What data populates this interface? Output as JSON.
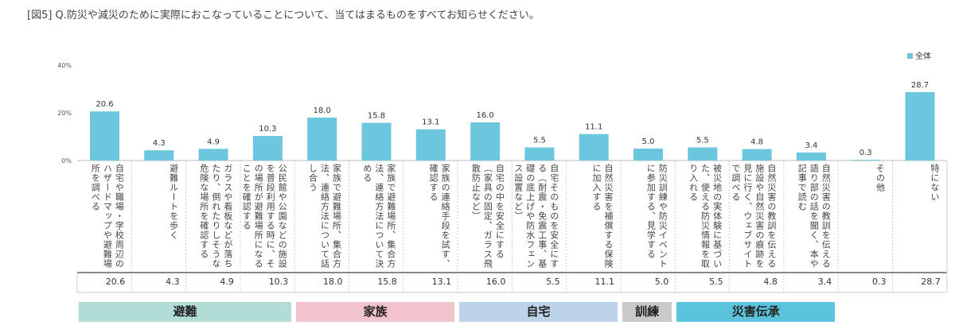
{
  "title": "[図5] Q.防災や減災のために実際におこなっていることについて、当てはまるものをすべてお知らせください。",
  "chart_data": {
    "type": "bar",
    "ylim": [
      0,
      40
    ],
    "yticks": [
      "0%",
      "20%",
      "40%"
    ],
    "legend": {
      "position": "top-right",
      "entries": [
        "全体"
      ]
    },
    "bar_color": "#6cc6de",
    "categories": [
      "自宅や職場・学校周辺のハザードマップや避難場所を調べる",
      "避難ルートを歩く",
      "ガラスや看板などが落ちたり、倒れたりしそうな危険な場所を確認する",
      "公民館や公園などの施設を普段利用する時に、その場所が避難場所になることを確認する",
      "家族で避難場所、集合方法、連絡方法について話し合う",
      "家族で避難場所、集合方法、連絡方法について決める",
      "家族の連絡手段を試す、確認する",
      "自宅の中を安全にする（家具の固定、ガラス飛散防止など）",
      "自宅そのものを安全にする（耐震・免震工事、基礎の底上げや防水フェンス設置など）",
      "自然災害を補償する保険に加入する",
      "防災訓練や防災イベントに参加する、見学する",
      "被災地の実体験に基づいた、使える防災情報を取り入れる",
      "自然災害の教訓を伝える施設や自然災害の痕跡を見に行く、ウェブサイトで調べる",
      "自然災害の教訓を伝える語り部の話を聞く、本や記事で読む",
      "その他",
      "特にない"
    ],
    "series": [
      {
        "name": "全体",
        "values": [
          20.6,
          4.3,
          4.9,
          10.3,
          18.0,
          15.8,
          13.1,
          16.0,
          5.5,
          11.1,
          5.0,
          5.5,
          4.8,
          3.4,
          0.3,
          28.7
        ]
      }
    ],
    "table_values": [
      "20.6",
      "4.3",
      "4.9",
      "10.3",
      "18.0",
      "15.8",
      "13.1",
      "16.0",
      "5.5",
      "11.1",
      "5.0",
      "5.5",
      "4.8",
      "3.4",
      "0.3",
      "28.7"
    ],
    "groups": [
      {
        "label": "避難",
        "color": "#b2dcd6",
        "span": [
          0,
          3
        ]
      },
      {
        "label": "家族",
        "color": "#f2c3cc",
        "span": [
          4,
          6
        ]
      },
      {
        "label": "自宅",
        "color": "#bcd3ea",
        "span": [
          7,
          9
        ]
      },
      {
        "label": "訓練",
        "color": "#c9c9c9",
        "span": [
          10,
          10
        ]
      },
      {
        "label": "災害伝承",
        "color": "#5bc3dc",
        "span": [
          11,
          13
        ]
      }
    ]
  }
}
